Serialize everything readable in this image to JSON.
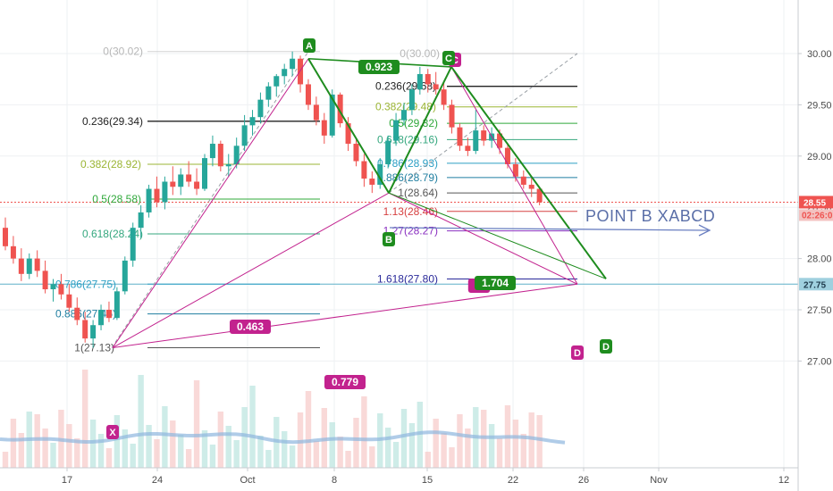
{
  "chart_data": {
    "type": "candlestick",
    "symbol_interval": "daily",
    "x_ticks": [
      "17",
      "24",
      "Oct",
      "8",
      "15",
      "22",
      "26",
      "Nov",
      "12"
    ],
    "y_ticks": [
      "30.00",
      "29.50",
      "29.00",
      "28.50",
      "28.00",
      "27.50",
      "27.00"
    ],
    "y_range": [
      26.75,
      30.25
    ],
    "grid": true,
    "colors": {
      "up": "#26a69a",
      "down": "#ef5350",
      "pattern_green": "#1e8c1e",
      "pattern_magenta": "#c2228e",
      "fib_left": "#2a9d8f",
      "annotation": "#6a7fc1"
    },
    "last_price": {
      "label": "28.55",
      "value": 28.55,
      "color": "#ef5350"
    },
    "countdown": {
      "label": "02:26:0",
      "color": "#ef5350"
    },
    "hline_marker": {
      "label": "27.75",
      "value": 27.75,
      "color": "#5fb0c8"
    },
    "fib_left": {
      "levels": [
        {
          "label": "0(30.02)",
          "value": 30.02,
          "color": "#b7b7b7"
        },
        {
          "label": "0.236(29.34)",
          "value": 29.34,
          "color": "#222222"
        },
        {
          "label": "0.382(28.92)",
          "value": 28.92,
          "color": "#9bb534"
        },
        {
          "label": "0.5(28.58)",
          "value": 28.58,
          "color": "#2fa83a"
        },
        {
          "label": "0.618(28.24)",
          "value": 28.24,
          "color": "#34a77e"
        },
        {
          "label": "0.786(27.75)",
          "value": 27.75,
          "color": "#2c9fc4"
        },
        {
          "label": "0.886(27.46)",
          "value": 27.46,
          "color": "#1f7ea0"
        },
        {
          "label": "1(27.13)",
          "value": 27.13,
          "color": "#555555"
        }
      ]
    },
    "fib_right": {
      "levels": [
        {
          "label": "0(30.00)",
          "value": 30.0,
          "color": "#b7b7b7"
        },
        {
          "label": "0.236(29.68)",
          "value": 29.68,
          "color": "#222222"
        },
        {
          "label": "0.382(29.48)",
          "value": 29.48,
          "color": "#9bb534"
        },
        {
          "label": "0.5(29.32)",
          "value": 29.32,
          "color": "#2fa83a"
        },
        {
          "label": "0.618(29.16)",
          "value": 29.16,
          "color": "#34a77e"
        },
        {
          "label": "0.786(28.93)",
          "value": 28.93,
          "color": "#2c9fc4"
        },
        {
          "label": "0.886(28.79)",
          "value": 28.79,
          "color": "#1f7ea0"
        },
        {
          "label": "1(28.64)",
          "value": 28.64,
          "color": "#555555"
        },
        {
          "label": "1.13(28.46)",
          "value": 28.46,
          "color": "#d64040"
        },
        {
          "label": "1.27(28.27)",
          "value": 28.27,
          "color": "#8a2fc0"
        },
        {
          "label": "1.618(27.80)",
          "value": 27.8,
          "color": "#2a2a9a"
        }
      ]
    },
    "points": [
      {
        "name": "X",
        "value": 27.13,
        "color": "#c2228e"
      },
      {
        "name": "A",
        "value": 29.95,
        "color": "#1e8c1e"
      },
      {
        "name": "B",
        "value": 28.64,
        "color": "#1e8c1e"
      },
      {
        "name": "C",
        "value": 29.87,
        "color": "#1e8c1e"
      },
      {
        "name": "C",
        "value": 29.87,
        "color": "#c2228e"
      },
      {
        "name": "D",
        "value": 27.75,
        "color": "#1e8c1e"
      },
      {
        "name": "D",
        "value": 27.75,
        "color": "#c2228e"
      }
    ],
    "ratios": [
      {
        "label": "0.923",
        "color": "#1e8c1e"
      },
      {
        "label": "0.463",
        "color": "#c2228e"
      },
      {
        "label": "0.779",
        "color": "#c2228e"
      },
      {
        "label": "1.704",
        "color": "#1e8c1e"
      },
      {
        "label": "1.",
        "color": "#c2228e"
      }
    ],
    "annotation": "POINT B XABCD",
    "candles": [
      [
        28.3,
        28.4,
        28.08,
        28.12
      ],
      [
        28.12,
        28.22,
        27.95,
        28.0
      ],
      [
        28.0,
        28.1,
        27.78,
        27.85
      ],
      [
        27.85,
        28.05,
        27.8,
        28.0
      ],
      [
        28.0,
        28.08,
        27.82,
        27.88
      ],
      [
        27.88,
        27.98,
        27.66,
        27.7
      ],
      [
        27.7,
        27.8,
        27.58,
        27.75
      ],
      [
        27.75,
        27.85,
        27.6,
        27.65
      ],
      [
        27.65,
        27.75,
        27.48,
        27.52
      ],
      [
        27.52,
        27.62,
        27.35,
        27.4
      ],
      [
        27.4,
        27.48,
        27.18,
        27.22
      ],
      [
        27.22,
        27.4,
        27.13,
        27.35
      ],
      [
        27.35,
        27.55,
        27.3,
        27.5
      ],
      [
        27.5,
        27.58,
        27.38,
        27.42
      ],
      [
        27.42,
        27.72,
        27.4,
        27.68
      ],
      [
        27.68,
        28.02,
        27.65,
        27.98
      ],
      [
        27.98,
        28.35,
        27.92,
        28.3
      ],
      [
        28.3,
        28.52,
        28.2,
        28.45
      ],
      [
        28.45,
        28.72,
        28.4,
        28.68
      ],
      [
        28.68,
        28.8,
        28.5,
        28.55
      ],
      [
        28.55,
        28.8,
        28.48,
        28.75
      ],
      [
        28.75,
        28.9,
        28.62,
        28.7
      ],
      [
        28.7,
        28.88,
        28.62,
        28.82
      ],
      [
        28.82,
        28.95,
        28.7,
        28.75
      ],
      [
        28.75,
        28.88,
        28.62,
        28.68
      ],
      [
        28.68,
        29.02,
        28.66,
        28.98
      ],
      [
        28.98,
        29.2,
        28.9,
        29.12
      ],
      [
        29.12,
        29.15,
        28.85,
        28.9
      ],
      [
        28.9,
        29.02,
        28.8,
        28.92
      ],
      [
        28.92,
        29.18,
        28.88,
        29.1
      ],
      [
        29.1,
        29.4,
        29.05,
        29.3
      ],
      [
        29.3,
        29.45,
        29.2,
        29.38
      ],
      [
        29.38,
        29.62,
        29.32,
        29.55
      ],
      [
        29.55,
        29.72,
        29.48,
        29.68
      ],
      [
        29.68,
        29.8,
        29.58,
        29.78
      ],
      [
        29.78,
        29.9,
        29.7,
        29.85
      ],
      [
        29.85,
        30.02,
        29.78,
        29.95
      ],
      [
        29.95,
        29.98,
        29.62,
        29.7
      ],
      [
        29.7,
        29.75,
        29.45,
        29.5
      ],
      [
        29.5,
        29.58,
        29.3,
        29.35
      ],
      [
        29.35,
        29.42,
        29.12,
        29.2
      ],
      [
        29.2,
        29.65,
        29.18,
        29.6
      ],
      [
        29.6,
        29.62,
        29.28,
        29.32
      ],
      [
        29.32,
        29.38,
        29.05,
        29.12
      ],
      [
        29.12,
        29.18,
        28.9,
        28.95
      ],
      [
        28.95,
        29.02,
        28.7,
        28.78
      ],
      [
        28.78,
        28.85,
        28.64,
        28.72
      ],
      [
        28.72,
        28.98,
        28.68,
        28.92
      ],
      [
        28.92,
        29.2,
        28.88,
        29.15
      ],
      [
        29.15,
        29.42,
        29.1,
        29.35
      ],
      [
        29.35,
        29.52,
        29.3,
        29.45
      ],
      [
        29.45,
        29.7,
        29.4,
        29.65
      ],
      [
        29.65,
        29.87,
        29.6,
        29.8
      ],
      [
        29.8,
        29.85,
        29.62,
        29.7
      ],
      [
        29.7,
        29.82,
        29.6,
        29.65
      ],
      [
        29.65,
        29.72,
        29.45,
        29.5
      ],
      [
        29.5,
        29.55,
        29.22,
        29.28
      ],
      [
        29.28,
        29.32,
        29.05,
        29.1
      ],
      [
        29.1,
        29.18,
        29.0,
        29.05
      ],
      [
        29.05,
        29.45,
        29.02,
        29.25
      ],
      [
        29.25,
        29.3,
        29.1,
        29.15
      ],
      [
        29.15,
        29.28,
        29.08,
        29.22
      ],
      [
        29.22,
        29.26,
        29.02,
        29.08
      ],
      [
        29.08,
        29.12,
        28.88,
        28.92
      ],
      [
        28.92,
        28.98,
        28.75,
        28.8
      ],
      [
        28.8,
        28.86,
        28.68,
        28.72
      ],
      [
        28.72,
        28.8,
        28.6,
        28.68
      ],
      [
        28.68,
        28.7,
        28.52,
        28.55
      ]
    ]
  }
}
